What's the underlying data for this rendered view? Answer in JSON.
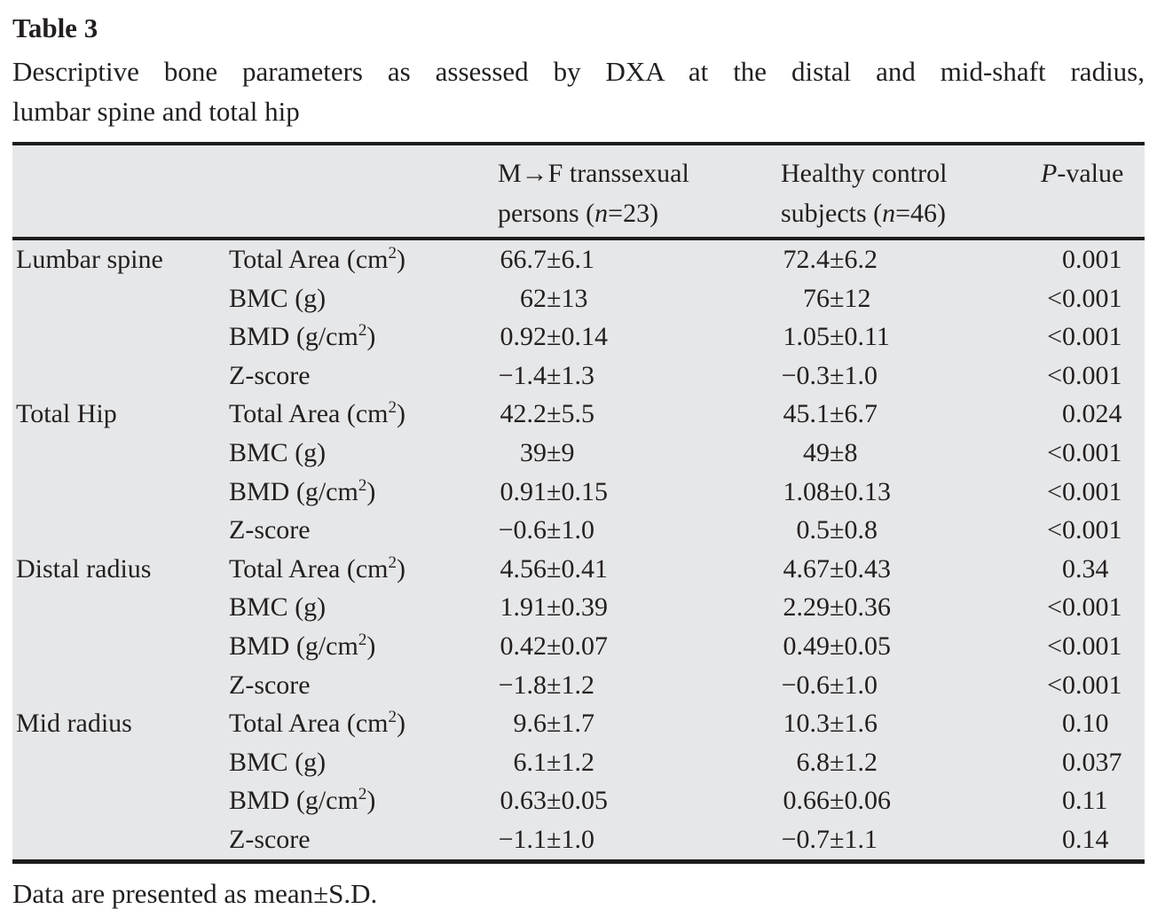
{
  "title": "Table 3",
  "caption": {
    "line1": "Descriptive bone parameters as assessed by DXA at the distal and mid-shaft radius,",
    "line2": "lumbar spine and total hip"
  },
  "header": {
    "col3_line1": "M→F transsexual",
    "col3_pre": "persons (",
    "col3_n": "n",
    "col3_post": "=23)",
    "col4_line1": "Healthy control",
    "col4_pre": "subjects (",
    "col4_n": "n",
    "col4_post": "=46)",
    "p_italic": "P",
    "p_rest": "-value"
  },
  "table": {
    "rows": [
      {
        "group": "Lumbar spine",
        "param": "Total Area (cm",
        "sup": "2",
        "close": ")",
        "mtf": "66.7±6.1",
        "control": "72.4±6.2",
        "p": "0.001"
      },
      {
        "group": "",
        "param": "BMC (g)",
        "sup": "",
        "close": "",
        "mtf": "62±13",
        "control": "76±12",
        "p": "<0.001"
      },
      {
        "group": "",
        "param": "BMD (g/cm",
        "sup": "2",
        "close": ")",
        "mtf": "0.92±0.14",
        "control": "1.05±0.11",
        "p": "<0.001"
      },
      {
        "group": "",
        "param": "Z-score",
        "sup": "",
        "close": "",
        "mtf": "−1.4±1.3",
        "control": "−0.3±1.0",
        "p": "<0.001"
      },
      {
        "group": "Total Hip",
        "param": "Total Area (cm",
        "sup": "2",
        "close": ")",
        "mtf": "42.2±5.5",
        "control": "45.1±6.7",
        "p": "0.024"
      },
      {
        "group": "",
        "param": "BMC (g)",
        "sup": "",
        "close": "",
        "mtf": "39±9",
        "control": "49±8",
        "p": "<0.001"
      },
      {
        "group": "",
        "param": "BMD (g/cm",
        "sup": "2",
        "close": ")",
        "mtf": "0.91±0.15",
        "control": "1.08±0.13",
        "p": "<0.001"
      },
      {
        "group": "",
        "param": "Z-score",
        "sup": "",
        "close": "",
        "mtf": "−0.6±1.0",
        "control": "0.5±0.8",
        "p": "<0.001"
      },
      {
        "group": "Distal radius",
        "param": "Total Area (cm",
        "sup": "2",
        "close": ")",
        "mtf": "4.56±0.41",
        "control": "4.67±0.43",
        "p": "0.34"
      },
      {
        "group": "",
        "param": "BMC (g)",
        "sup": "",
        "close": "",
        "mtf": "1.91±0.39",
        "control": "2.29±0.36",
        "p": "<0.001"
      },
      {
        "group": "",
        "param": "BMD (g/cm",
        "sup": "2",
        "close": ")",
        "mtf": "0.42±0.07",
        "control": "0.49±0.05",
        "p": "<0.001"
      },
      {
        "group": "",
        "param": "Z-score",
        "sup": "",
        "close": "",
        "mtf": "−1.8±1.2",
        "control": "−0.6±1.0",
        "p": "<0.001"
      },
      {
        "group": "Mid radius",
        "param": "Total Area (cm",
        "sup": "2",
        "close": ")",
        "mtf": "9.6±1.7",
        "control": "10.3±1.6",
        "p": "0.10"
      },
      {
        "group": "",
        "param": "BMC (g)",
        "sup": "",
        "close": "",
        "mtf": "6.1±1.2",
        "control": "6.8±1.2",
        "p": "0.037"
      },
      {
        "group": "",
        "param": "BMD (g/cm",
        "sup": "2",
        "close": ")",
        "mtf": "0.63±0.05",
        "control": "0.66±0.06",
        "p": "0.11"
      },
      {
        "group": "",
        "param": "Z-score",
        "sup": "",
        "close": "",
        "mtf": "−1.1±1.0",
        "control": "−0.7±1.1",
        "p": "0.14"
      }
    ]
  },
  "footnote": "Data are presented as mean±S.D.",
  "colors": {
    "table_background": "#e6e7e8",
    "rule": "#1c1c1c",
    "text": "#231f20",
    "page_background": "#ffffff"
  }
}
